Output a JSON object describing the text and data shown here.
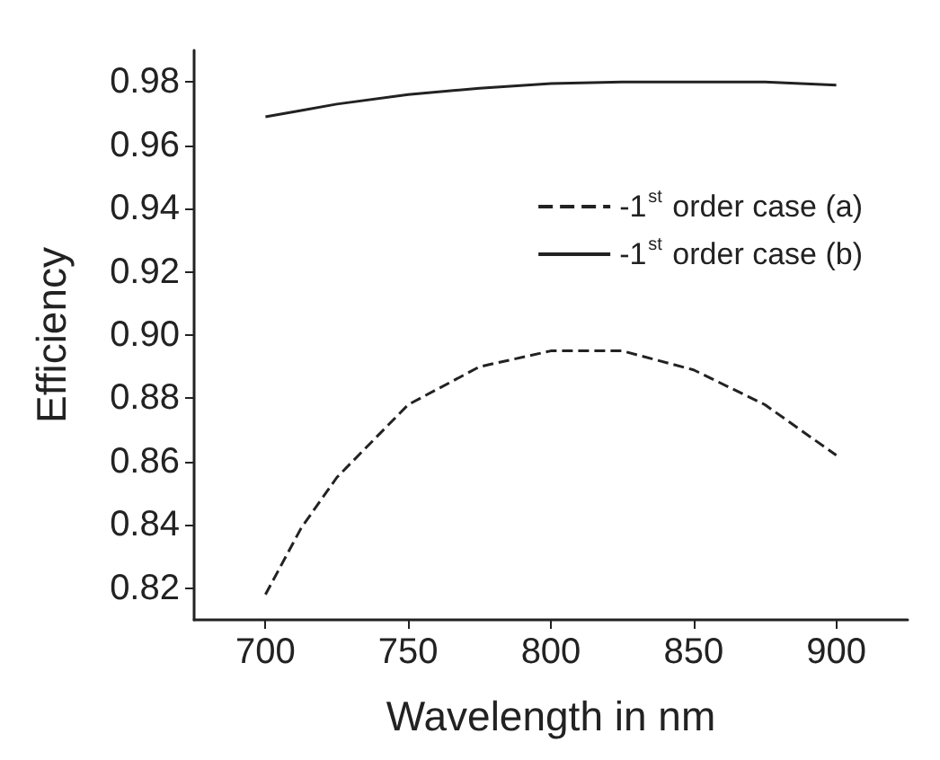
{
  "chart_data": {
    "type": "line",
    "xlabel": "Wavelength in nm",
    "ylabel": "Efficiency",
    "x": [
      700,
      712.5,
      725,
      750,
      775,
      800,
      825,
      850,
      875,
      900
    ],
    "series": [
      {
        "name": "-1$^{st}$ order case (a)",
        "color": "#222222",
        "line_style": "dashed",
        "values": [
          0.818,
          0.839,
          0.855,
          0.878,
          0.89,
          0.895,
          0.895,
          0.889,
          0.878,
          0.862
        ]
      },
      {
        "name": "-1$^{st}$ order case (b)",
        "color": "#222222",
        "line_style": "solid",
        "values": [
          0.969,
          0.971,
          0.973,
          0.976,
          0.978,
          0.9795,
          0.98,
          0.98,
          0.98,
          0.979
        ]
      }
    ],
    "xlim": [
      675,
      925
    ],
    "xticks": [
      700,
      750,
      800,
      850,
      900
    ],
    "ylim": [
      0.81,
      0.99
    ],
    "yticks": [
      {
        "value": 0.82,
        "label": "0.82"
      },
      {
        "value": 0.84,
        "label": "0.84"
      },
      {
        "value": 0.86,
        "label": "0.86"
      },
      {
        "value": 0.88,
        "label": "0.88"
      },
      {
        "value": 0.9,
        "label": "0.90"
      },
      {
        "value": 0.92,
        "label": "0.92"
      },
      {
        "value": 0.94,
        "label": "0.94"
      },
      {
        "value": 0.96,
        "label": "0.96"
      },
      {
        "value": 0.98,
        "label": "0.98"
      }
    ],
    "grid": false,
    "legend": "top right",
    "marker": "none"
  }
}
